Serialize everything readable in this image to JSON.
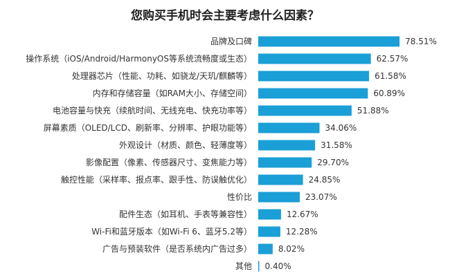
{
  "chart_data": {
    "type": "bar",
    "orientation": "horizontal",
    "title": "您购买手机时会主要考虑什么因素？",
    "color": "#1a9fd6",
    "grid": false,
    "categories": [
      "品牌及口碑",
      "操作系统（iOS/Android/HarmonyOS等系统流畅度或生态）",
      "处理器芯片（性能、功耗、如骁龙/天玑/麒麟等）",
      "内存和存储容量（如RAM大小、存储空间）",
      "电池容量与快充（续航时间、无线充电、快充功率等）",
      "屏幕素质（OLED/LCD、刷新率、分辨率、护眼功能等）",
      "外观设计（材质、颜色、轻薄度等）",
      "影像配置（像素、传感器尺寸、变焦能力等）",
      "触控性能（采样率、报点率、跟手性、防误触优化）",
      "性价比",
      "配件生态（如耳机、手表等兼容性）",
      "Wi-Fi和蓝牙版本（如Wi-Fi 6、蓝牙5.2等）",
      "广告与预装软件（是否系统内广告过多）",
      "其他"
    ],
    "values": [
      78.51,
      62.57,
      61.58,
      60.89,
      51.88,
      34.06,
      31.58,
      29.7,
      24.85,
      23.07,
      12.67,
      12.28,
      8.02,
      0.4
    ],
    "value_labels": [
      "78.51%",
      "62.57%",
      "61.58%",
      "60.89%",
      "51.88%",
      "34.06%",
      "31.58%",
      "29.70%",
      "24.85%",
      "23.07%",
      "12.67%",
      "12.28%",
      "8.02%",
      "0.40%"
    ]
  }
}
